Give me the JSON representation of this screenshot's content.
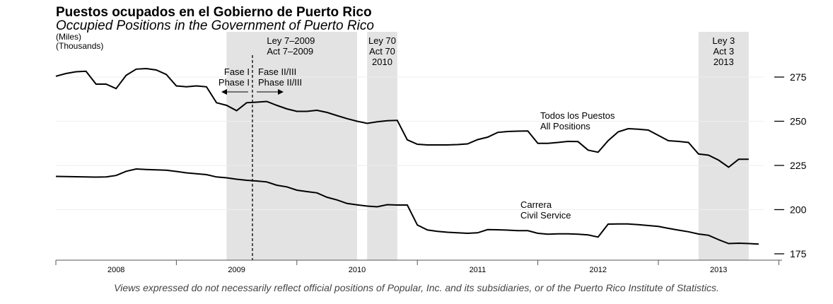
{
  "title": "Puestos ocupados en el Gobierno de Puerto Rico",
  "subtitle": "Occupied Positions in the Government of Puerto Rico",
  "unit_es": "(Miles)",
  "unit_en": "(Thousands)",
  "footer": "Views expressed do not necessarily reflect official positions of Popular, Inc. and its subsidiaries, or of the Puerto Rico Institute of Statistics.",
  "colors": {
    "line": "#000000",
    "shade": "#e3e3e3",
    "grid": "#eeeeee"
  },
  "chart_data": {
    "type": "line",
    "x_unit": "month",
    "x_start": "2007-07",
    "ylim": [
      175,
      280
    ],
    "yticks": [
      175,
      200,
      225,
      250,
      275
    ],
    "grid": true,
    "year_labels": [
      "2008",
      "2009",
      "2010",
      "2011",
      "2012",
      "2013"
    ],
    "x": [
      "2007-07",
      "2007-08",
      "2007-09",
      "2007-10",
      "2007-11",
      "2007-12",
      "2008-01",
      "2008-02",
      "2008-03",
      "2008-04",
      "2008-05",
      "2008-06",
      "2008-07",
      "2008-08",
      "2008-09",
      "2008-10",
      "2008-11",
      "2008-12",
      "2009-01",
      "2009-02",
      "2009-03",
      "2009-04",
      "2009-05",
      "2009-06",
      "2009-07",
      "2009-08",
      "2009-09",
      "2009-10",
      "2009-11",
      "2009-12",
      "2010-01",
      "2010-02",
      "2010-03",
      "2010-04",
      "2010-05",
      "2010-06",
      "2010-07",
      "2010-08",
      "2010-09",
      "2010-10",
      "2010-11",
      "2010-12",
      "2011-01",
      "2011-02",
      "2011-03",
      "2011-04",
      "2011-05",
      "2011-06",
      "2011-07",
      "2011-08",
      "2011-09",
      "2011-10",
      "2011-11",
      "2011-12",
      "2012-01",
      "2012-02",
      "2012-03",
      "2012-04",
      "2012-05",
      "2012-06",
      "2012-07",
      "2012-08",
      "2012-09",
      "2012-10",
      "2012-11",
      "2012-12",
      "2013-01",
      "2013-02",
      "2013-03",
      "2013-04",
      "2013-05",
      "2013-06"
    ],
    "series": [
      {
        "name_es": "Todos los Puestos",
        "name_en": "All Positions",
        "values": [
          275.5,
          277,
          278,
          278.3,
          271,
          271,
          268.5,
          276,
          279.5,
          279.8,
          279,
          276.5,
          270,
          269.5,
          270,
          269.5,
          260.5,
          259,
          256,
          260.5,
          260.8,
          261.2,
          259,
          257,
          255.6,
          255.6,
          256.2,
          255,
          253.2,
          251.5,
          250,
          248.8,
          249.7,
          250.3,
          250.5,
          239.5,
          237,
          236.6,
          236.6,
          236.6,
          236.8,
          237.2,
          239.6,
          241,
          243.7,
          244.2,
          244.4,
          244.5,
          237.5,
          237.5,
          238,
          238.6,
          238.5,
          233.7,
          232.5,
          239,
          244,
          245.8,
          245.5,
          245,
          242,
          239,
          238.6,
          238,
          231.5,
          230.8,
          228,
          224,
          228.5,
          228.5,
          null,
          null
        ]
      },
      {
        "name_es": "Carrera",
        "name_en": "Civil Service",
        "values": [
          218.8,
          218.7,
          218.6,
          218.5,
          218.4,
          218.5,
          219.3,
          221.7,
          223,
          222.7,
          222.5,
          222.3,
          221.6,
          220.8,
          220.3,
          219.8,
          218.5,
          218,
          217.2,
          216.6,
          216.2,
          215.7,
          213.8,
          212.9,
          211,
          210.2,
          209.5,
          207,
          205.5,
          203.5,
          202.7,
          202,
          201.6,
          202.8,
          202.6,
          202.6,
          191.3,
          188.5,
          187.7,
          187.2,
          186.9,
          186.6,
          186.9,
          188.7,
          188.6,
          188.4,
          188.1,
          188.1,
          186.6,
          186.1,
          186.3,
          186.3,
          186.1,
          185.7,
          184.5,
          191.8,
          191.9,
          191.9,
          191.5,
          191,
          190.5,
          189.4,
          188.4,
          187.5,
          186.2,
          185.5,
          183,
          180.8,
          181,
          180.8,
          180.5,
          null
        ]
      }
    ],
    "periods": [
      {
        "start": "2008-12",
        "end": "2010-01",
        "lines": [
          "Ley  7–2009",
          "Act  7–2009"
        ]
      },
      {
        "start": "2010-02",
        "end": "2010-05",
        "lines": [
          "Ley 70",
          "Act 70",
          "2010"
        ]
      },
      {
        "start": "2012-11",
        "end": "2013-04",
        "lines": [
          "Ley 3",
          "Act 3",
          "2013"
        ]
      }
    ],
    "phase_divider": "2009-03",
    "phases": [
      {
        "lines": [
          "Fase I",
          "Phase I"
        ],
        "arrow": "left"
      },
      {
        "lines": [
          "Fase II/III",
          "Phase II/III"
        ],
        "arrow": "right"
      }
    ]
  }
}
